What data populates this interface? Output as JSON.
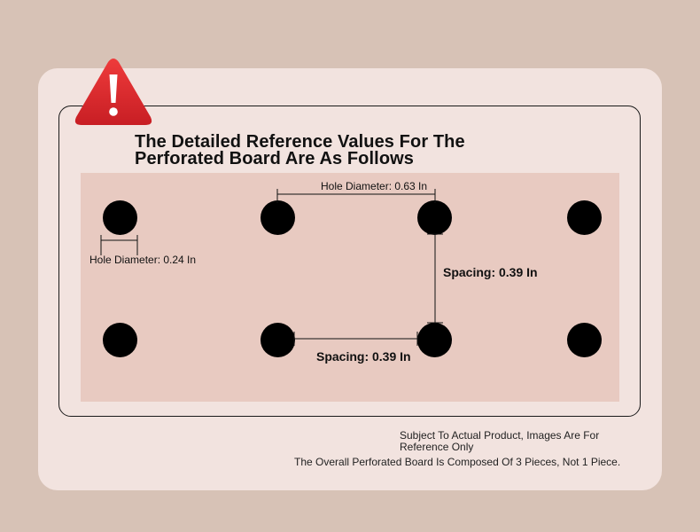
{
  "title": {
    "line1": "The Detailed Reference Values For The",
    "line2": "Perforated Board Are As Follows"
  },
  "dimensions": {
    "hole_diameter_small": "Hole Diameter: 0.24 In",
    "hole_diameter_span": "Hole Diameter: 0.63 In",
    "spacing_vertical": "Spacing: 0.39 In",
    "spacing_horizontal": "Spacing: 0.39 In"
  },
  "notes": {
    "disclaimer_line1": "Subject To Actual Product, Images Are For",
    "disclaimer_line2": "Reference Only",
    "composition": "The Overall Perforated Board Is Composed Of 3 Pieces, Not 1 Piece."
  },
  "colors": {
    "background": "#d7c2b6",
    "card": "#f2e3df",
    "board": "#e8cac1",
    "hole": "#000000",
    "warning_red": "#d8262a"
  },
  "icons": {
    "warning": "warning-triangle-icon"
  }
}
